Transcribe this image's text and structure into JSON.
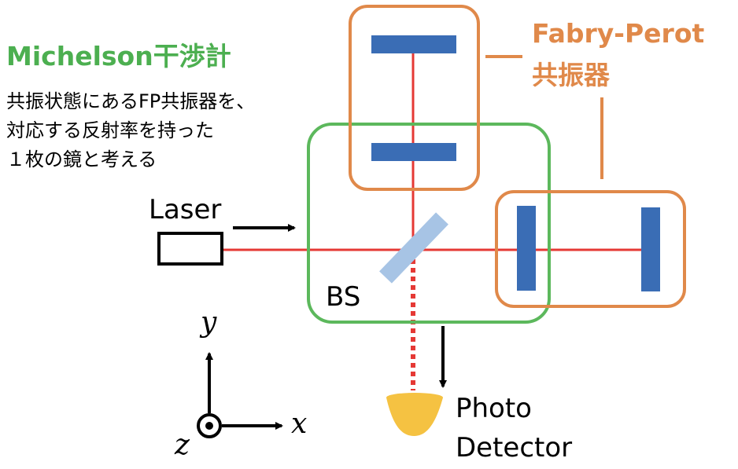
{
  "michelson": {
    "title": "Michelson干渉計",
    "note_lines": [
      "共振状態にあるFP共振器を、",
      "対応する反射率を持った",
      "１枚の鏡と考える"
    ]
  },
  "fabry_perot": {
    "label_line1": "Fabry-Perot",
    "label_line2": "共振器"
  },
  "components": {
    "laser": "Laser",
    "beam_splitter": "BS",
    "detector_line1": "Photo",
    "detector_line2": "Detector"
  },
  "axes": {
    "x": "x",
    "y": "y",
    "z": "z"
  },
  "colors": {
    "beam": "#e53935",
    "mirror": "#3a6db5",
    "beam_splitter": "#a7c4e5",
    "michelson_box": "#5cb85c",
    "fp_box": "#e0894a",
    "detector": "#f5c242"
  }
}
